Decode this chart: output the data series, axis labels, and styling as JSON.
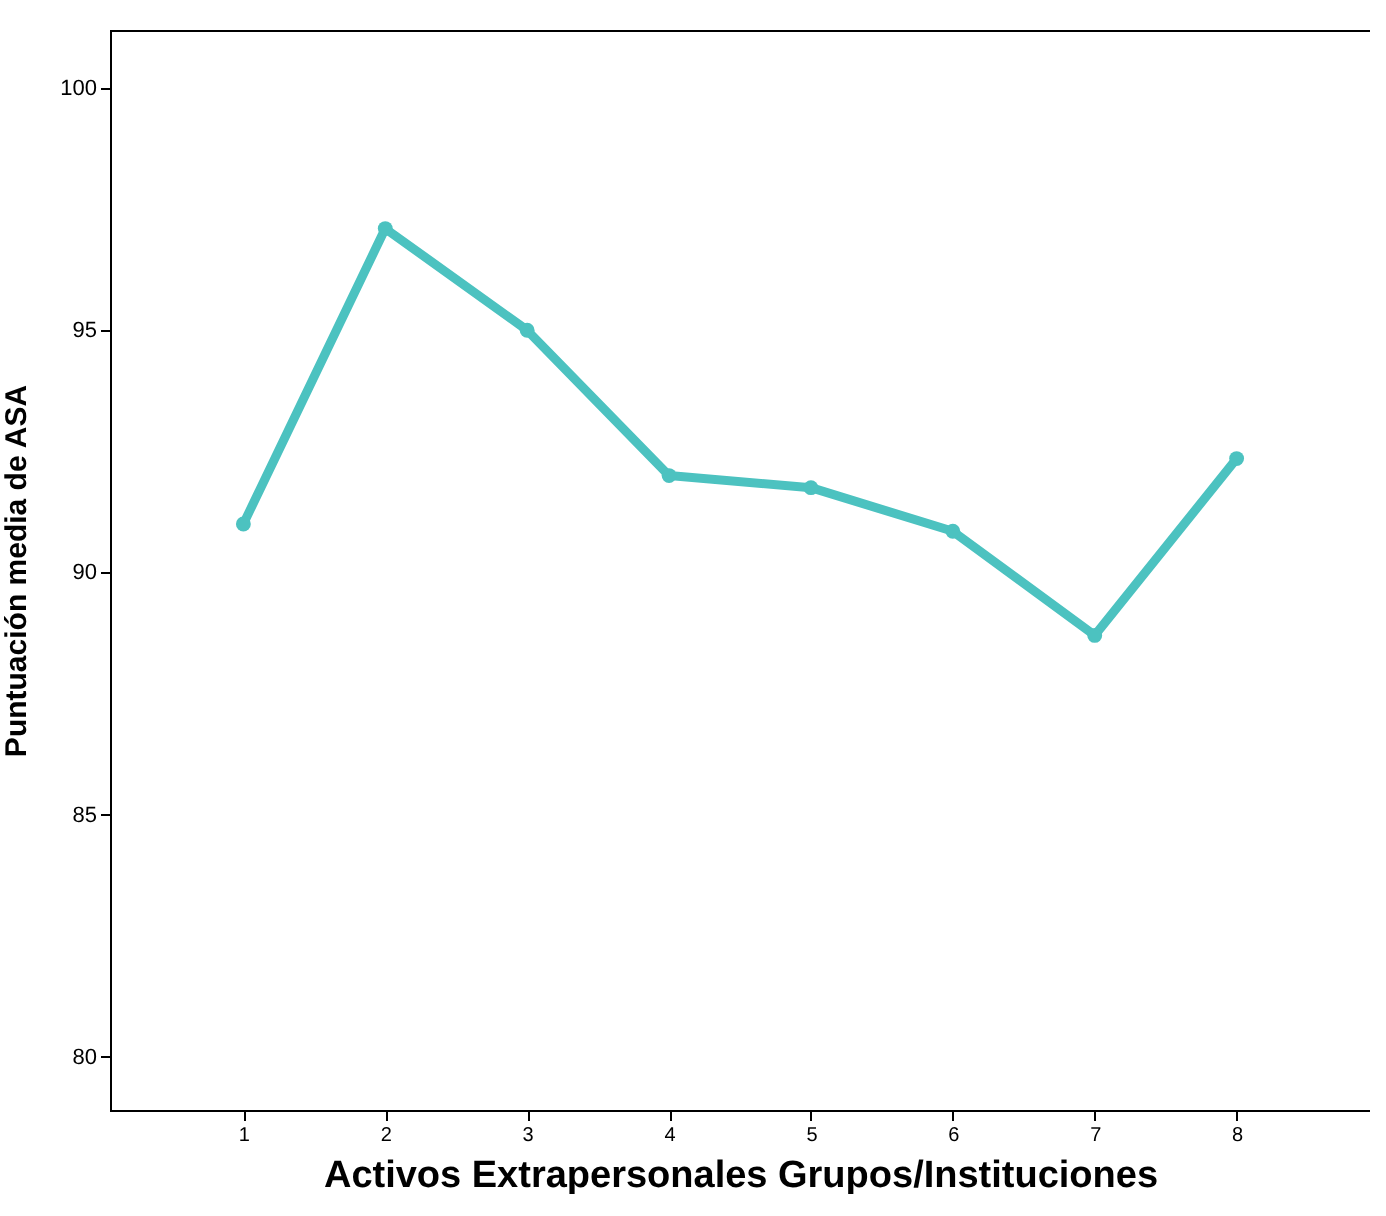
{
  "chart_data": {
    "type": "line",
    "xlabel": "Activos Extrapersonales Grupos/Instituciones",
    "ylabel": "Puntuación media de ASA",
    "categories": [
      "1",
      "2",
      "3",
      "4",
      "5",
      "6",
      "7",
      "8"
    ],
    "series": [
      {
        "color": "#4cc2c0",
        "values": [
          91.0,
          97.1,
          95.0,
          92.0,
          91.75,
          90.85,
          88.7,
          92.35
        ]
      }
    ],
    "ylim": [
      78.9,
      101.2
    ],
    "yticks": [
      80,
      85,
      90,
      95,
      100
    ],
    "grid": false,
    "legend": false,
    "marker": "circle",
    "line_style": "solid"
  }
}
